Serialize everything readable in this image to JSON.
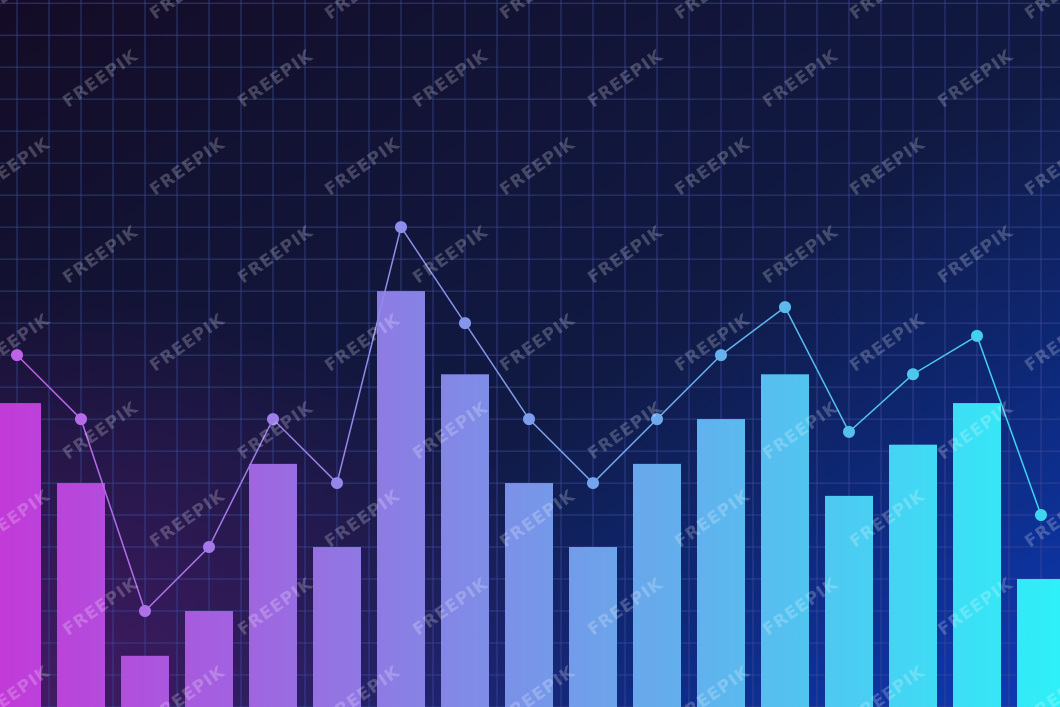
{
  "watermark": "FREEPIK",
  "chart_data": {
    "type": "bar-line",
    "categories": [
      null,
      null,
      null,
      null,
      null,
      null,
      null,
      null,
      null,
      null,
      null,
      null,
      null,
      null,
      null,
      null,
      null
    ],
    "series": [
      {
        "type": "bar",
        "color": [
          "#c23ad9",
          "#2ef0f8"
        ],
        "values": [
          9.5,
          7,
          1.6,
          3,
          7.6,
          5,
          13,
          10.4,
          7,
          5,
          7.6,
          9,
          10.4,
          6.6,
          8.2,
          9.5,
          4
        ]
      },
      {
        "type": "line",
        "color": [
          "#c060e8",
          "#3ad8f0"
        ],
        "values": [
          11,
          9,
          3,
          5,
          9,
          7,
          15,
          12,
          9,
          7,
          9,
          11,
          12.5,
          8.6,
          10.4,
          11.6,
          6
        ]
      }
    ],
    "ylim": [
      0,
      22.1
    ],
    "yticks": [
      0,
      1,
      2,
      3,
      4,
      5,
      6,
      7,
      8,
      9,
      10,
      11,
      12,
      13,
      14,
      15,
      16,
      17,
      18,
      19,
      20,
      21,
      22
    ],
    "grid": true
  }
}
